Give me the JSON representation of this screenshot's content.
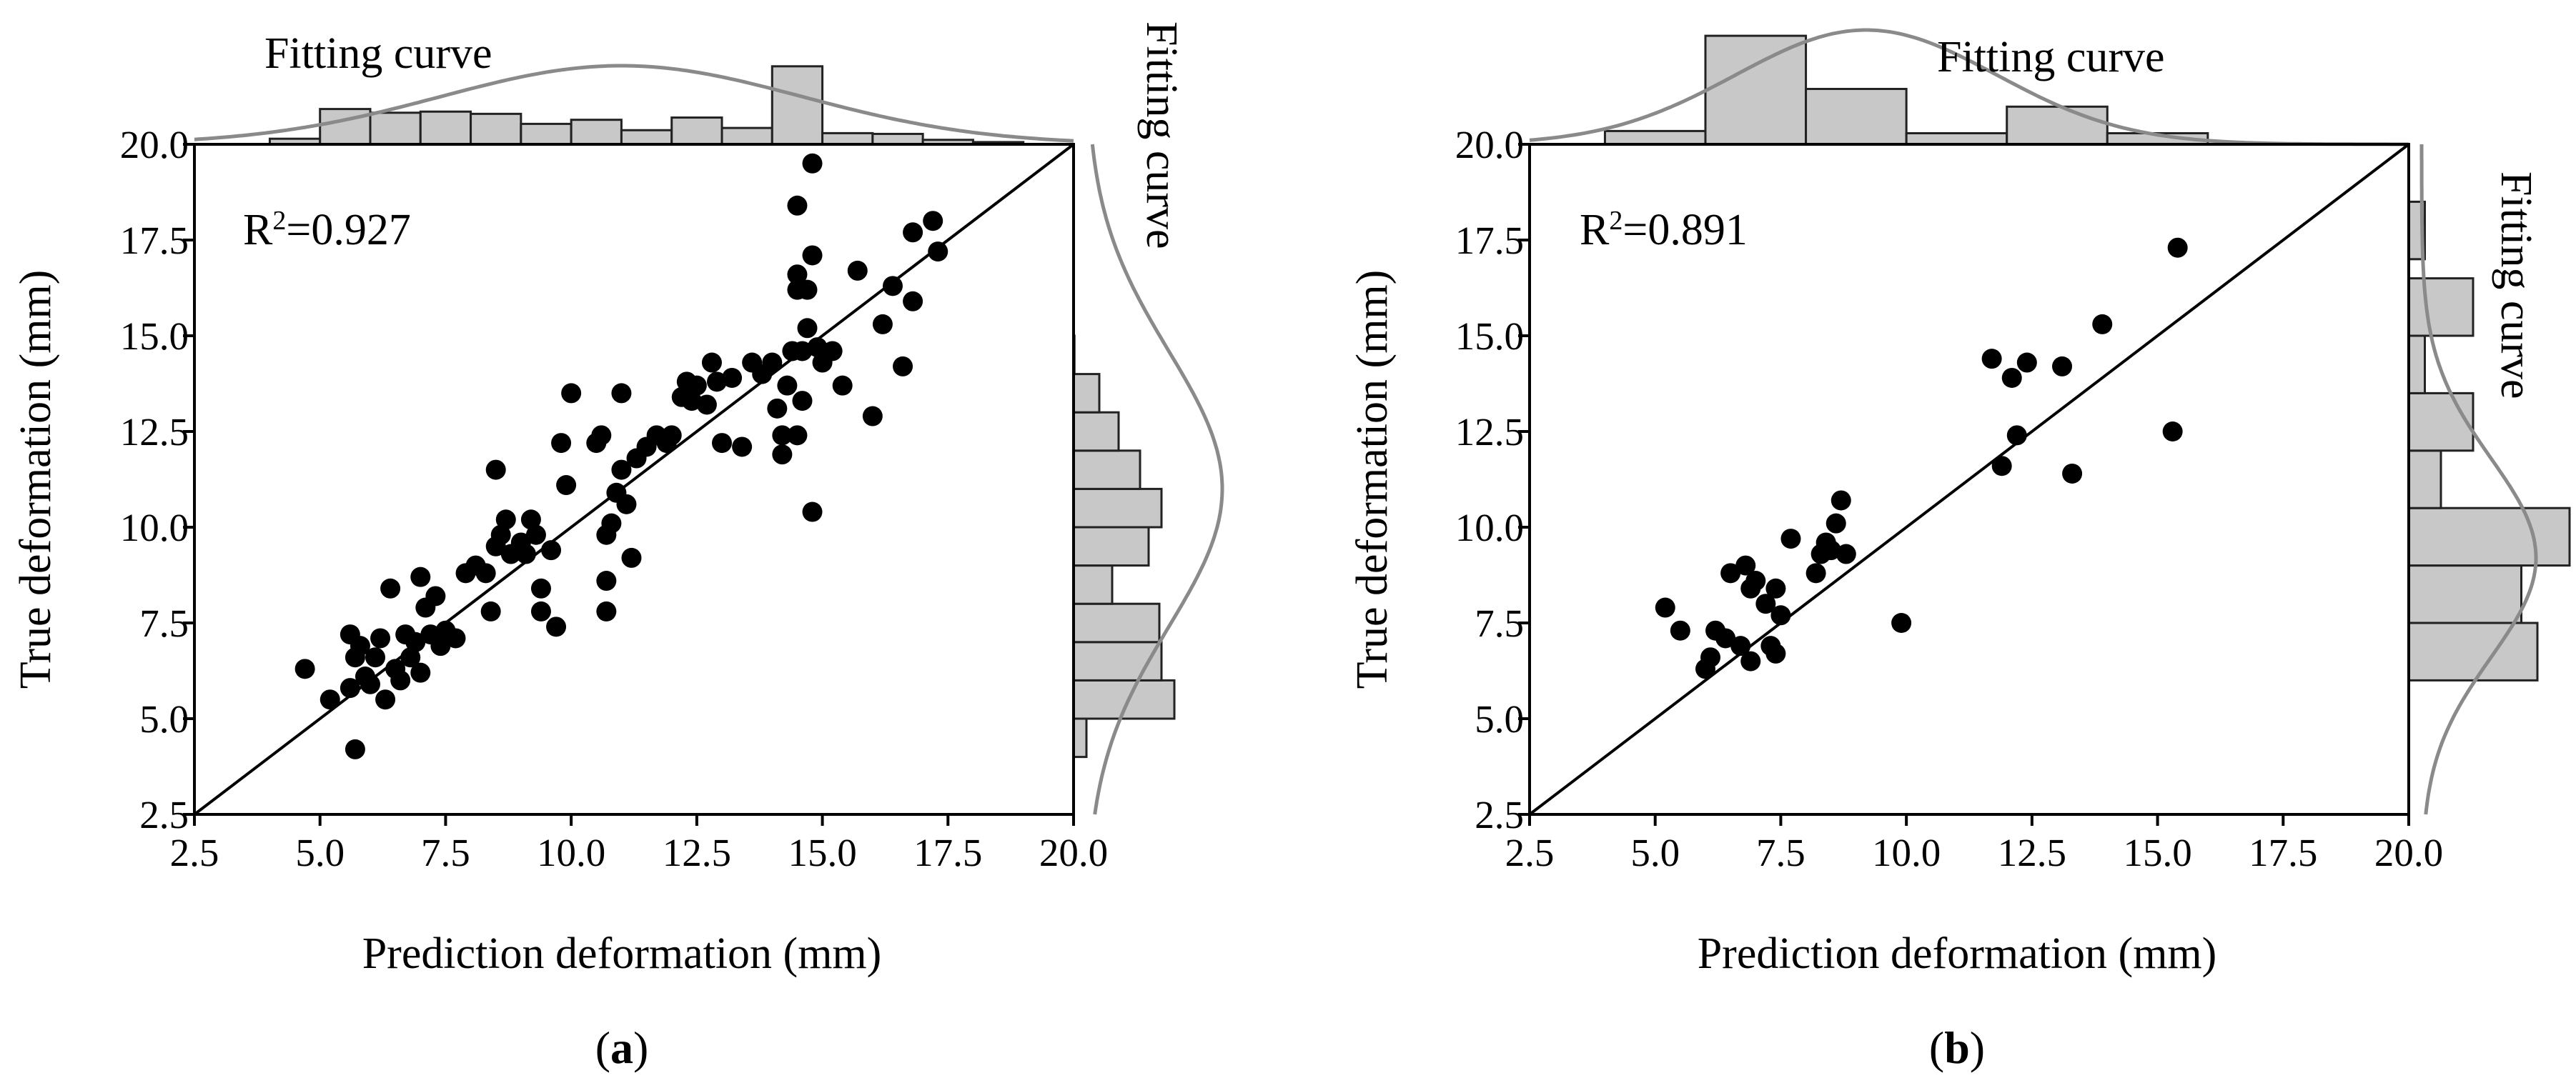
{
  "chart_data": [
    {
      "type": "scatter",
      "panel_label": "a",
      "xlabel": "Prediction deformation (mm)",
      "ylabel": "True deformation (mm)",
      "xlim": [
        2.5,
        20.0
      ],
      "ylim": [
        2.5,
        20.0
      ],
      "xticks": [
        "2.5",
        "5.0",
        "7.5",
        "10.0",
        "12.5",
        "15.0",
        "17.5",
        "20.0"
      ],
      "yticks": [
        "2.5",
        "5.0",
        "7.5",
        "10.0",
        "12.5",
        "15.0",
        "17.5",
        "20.0"
      ],
      "annotation": {
        "prefix": "R",
        "sup": "2",
        "value": "=0.927"
      },
      "top_fit_label": "Fitting curve",
      "right_fit_label": "Fitting curve",
      "reference_line": [
        [
          2.5,
          2.5
        ],
        [
          20.0,
          20.0
        ]
      ],
      "points": [
        [
          4.7,
          6.3
        ],
        [
          5.2,
          5.5
        ],
        [
          5.6,
          7.2
        ],
        [
          5.7,
          6.6
        ],
        [
          5.6,
          5.8
        ],
        [
          5.8,
          6.9
        ],
        [
          5.9,
          6.1
        ],
        [
          6.0,
          5.9
        ],
        [
          5.7,
          4.2
        ],
        [
          6.1,
          6.6
        ],
        [
          6.2,
          7.1
        ],
        [
          6.3,
          5.5
        ],
        [
          6.4,
          8.4
        ],
        [
          6.5,
          6.3
        ],
        [
          6.6,
          6.0
        ],
        [
          6.7,
          7.2
        ],
        [
          6.8,
          6.6
        ],
        [
          6.9,
          7.0
        ],
        [
          7.0,
          8.7
        ],
        [
          7.0,
          6.2
        ],
        [
          7.1,
          7.9
        ],
        [
          7.2,
          7.2
        ],
        [
          7.3,
          8.2
        ],
        [
          7.4,
          6.9
        ],
        [
          7.5,
          7.3
        ],
        [
          7.7,
          7.1
        ],
        [
          7.9,
          8.8
        ],
        [
          8.1,
          9.0
        ],
        [
          8.3,
          8.8
        ],
        [
          8.4,
          7.8
        ],
        [
          8.5,
          11.5
        ],
        [
          8.5,
          9.5
        ],
        [
          8.6,
          9.8
        ],
        [
          8.7,
          10.2
        ],
        [
          8.8,
          9.3
        ],
        [
          9.0,
          9.6
        ],
        [
          9.1,
          9.3
        ],
        [
          9.2,
          10.2
        ],
        [
          9.3,
          9.8
        ],
        [
          9.4,
          8.4
        ],
        [
          9.4,
          7.8
        ],
        [
          9.6,
          9.4
        ],
        [
          9.7,
          7.4
        ],
        [
          9.8,
          12.2
        ],
        [
          9.9,
          11.1
        ],
        [
          10.0,
          13.5
        ],
        [
          10.5,
          12.2
        ],
        [
          10.6,
          12.4
        ],
        [
          10.7,
          9.8
        ],
        [
          10.7,
          8.6
        ],
        [
          10.7,
          7.8
        ],
        [
          10.8,
          10.1
        ],
        [
          10.9,
          10.9
        ],
        [
          11.0,
          11.5
        ],
        [
          11.0,
          13.5
        ],
        [
          11.1,
          10.6
        ],
        [
          11.2,
          9.2
        ],
        [
          11.3,
          11.8
        ],
        [
          11.5,
          12.1
        ],
        [
          11.7,
          12.4
        ],
        [
          11.9,
          12.2
        ],
        [
          12.0,
          12.4
        ],
        [
          12.2,
          13.4
        ],
        [
          12.3,
          13.8
        ],
        [
          12.4,
          13.3
        ],
        [
          12.5,
          13.7
        ],
        [
          12.7,
          13.2
        ],
        [
          12.8,
          14.3
        ],
        [
          12.9,
          13.8
        ],
        [
          13.0,
          12.2
        ],
        [
          13.2,
          13.9
        ],
        [
          13.4,
          12.1
        ],
        [
          13.6,
          14.3
        ],
        [
          13.8,
          14.0
        ],
        [
          14.0,
          14.3
        ],
        [
          14.1,
          13.1
        ],
        [
          14.2,
          12.4
        ],
        [
          14.2,
          11.9
        ],
        [
          14.3,
          13.7
        ],
        [
          14.4,
          14.6
        ],
        [
          14.5,
          12.4
        ],
        [
          14.5,
          16.2
        ],
        [
          14.5,
          16.6
        ],
        [
          14.5,
          18.4
        ],
        [
          14.6,
          13.3
        ],
        [
          14.6,
          14.6
        ],
        [
          14.7,
          15.2
        ],
        [
          14.7,
          16.2
        ],
        [
          14.8,
          17.1
        ],
        [
          14.8,
          19.5
        ],
        [
          14.8,
          10.4
        ],
        [
          14.9,
          14.7
        ],
        [
          15.0,
          14.3
        ],
        [
          15.2,
          14.6
        ],
        [
          15.4,
          13.7
        ],
        [
          15.7,
          16.7
        ],
        [
          16.0,
          12.9
        ],
        [
          16.2,
          15.3
        ],
        [
          16.4,
          16.3
        ],
        [
          16.6,
          14.2
        ],
        [
          16.8,
          17.7
        ],
        [
          17.2,
          18.0
        ],
        [
          17.3,
          17.2
        ],
        [
          16.8,
          15.9
        ]
      ],
      "top_hist": {
        "bins": [
          [
            4.0,
            5.0,
            0.15
          ],
          [
            5.0,
            6.0,
            0.95
          ],
          [
            6.0,
            7.0,
            0.85
          ],
          [
            7.0,
            8.0,
            0.88
          ],
          [
            8.0,
            9.0,
            0.82
          ],
          [
            9.0,
            10.0,
            0.55
          ],
          [
            10.0,
            11.0,
            0.66
          ],
          [
            11.0,
            12.0,
            0.38
          ],
          [
            12.0,
            13.0,
            0.72
          ],
          [
            13.0,
            14.0,
            0.44
          ],
          [
            14.0,
            15.0,
            2.1
          ],
          [
            15.0,
            16.0,
            0.3
          ],
          [
            16.0,
            17.0,
            0.28
          ],
          [
            17.0,
            18.0,
            0.12
          ],
          [
            18.0,
            19.0,
            0.06
          ]
        ]
      },
      "right_hist": {
        "bins": [
          [
            4.0,
            5.0,
            0.3
          ],
          [
            5.0,
            6.0,
            2.35
          ],
          [
            6.0,
            7.0,
            2.05
          ],
          [
            7.0,
            8.0,
            2.0
          ],
          [
            8.0,
            9.0,
            0.9
          ],
          [
            9.0,
            10.0,
            1.75
          ],
          [
            10.0,
            11.0,
            2.05
          ],
          [
            11.0,
            12.0,
            1.55
          ],
          [
            12.0,
            13.0,
            1.05
          ],
          [
            13.0,
            14.0,
            0.6
          ],
          [
            14.0,
            15.0,
            0.02
          ]
        ]
      },
      "fit_normal": {
        "mean": 11.0,
        "sd": 3.6
      }
    },
    {
      "type": "scatter",
      "panel_label": "b",
      "xlabel": "Prediction deformation (mm)",
      "ylabel": "True deformation (mm)",
      "xlim": [
        2.5,
        20.0
      ],
      "ylim": [
        2.5,
        20.0
      ],
      "xticks": [
        "2.5",
        "5.0",
        "7.5",
        "10.0",
        "12.5",
        "15.0",
        "17.5",
        "20.0"
      ],
      "yticks": [
        "2.5",
        "5.0",
        "7.5",
        "10.0",
        "12.5",
        "15.0",
        "17.5",
        "20.0"
      ],
      "annotation": {
        "prefix": "R",
        "sup": "2",
        "value": "=0.891"
      },
      "top_fit_label": "Fitting curve",
      "right_fit_label": "Fitting curve",
      "reference_line": [
        [
          2.5,
          2.5
        ],
        [
          20.0,
          20.0
        ]
      ],
      "points": [
        [
          5.2,
          7.9
        ],
        [
          5.5,
          7.3
        ],
        [
          6.0,
          6.3
        ],
        [
          6.1,
          6.6
        ],
        [
          6.2,
          7.3
        ],
        [
          6.4,
          7.1
        ],
        [
          6.5,
          8.8
        ],
        [
          6.7,
          6.9
        ],
        [
          6.8,
          9.0
        ],
        [
          6.9,
          6.5
        ],
        [
          6.9,
          8.4
        ],
        [
          7.0,
          8.6
        ],
        [
          7.2,
          8.0
        ],
        [
          7.3,
          6.9
        ],
        [
          7.4,
          6.7
        ],
        [
          7.5,
          7.7
        ],
        [
          7.4,
          8.4
        ],
        [
          7.7,
          9.7
        ],
        [
          8.2,
          8.8
        ],
        [
          8.3,
          9.3
        ],
        [
          8.4,
          9.6
        ],
        [
          8.5,
          9.4
        ],
        [
          8.6,
          10.1
        ],
        [
          8.7,
          10.7
        ],
        [
          8.8,
          9.3
        ],
        [
          9.9,
          7.5
        ],
        [
          11.7,
          14.4
        ],
        [
          11.9,
          11.6
        ],
        [
          12.1,
          13.9
        ],
        [
          12.2,
          12.4
        ],
        [
          12.4,
          14.3
        ],
        [
          13.1,
          14.2
        ],
        [
          13.3,
          11.4
        ],
        [
          13.9,
          15.3
        ],
        [
          15.3,
          12.5
        ],
        [
          15.4,
          17.3
        ]
      ],
      "top_hist": {
        "bins": [
          [
            4.0,
            6.0,
            0.3
          ],
          [
            6.0,
            8.0,
            2.45
          ],
          [
            8.0,
            10.0,
            1.25
          ],
          [
            10.0,
            12.0,
            0.25
          ],
          [
            12.0,
            14.0,
            0.85
          ],
          [
            14.0,
            16.0,
            0.25
          ]
        ]
      },
      "right_hist": {
        "bins": [
          [
            6.0,
            7.5,
            1.2
          ],
          [
            7.5,
            9.0,
            1.05
          ],
          [
            9.0,
            10.5,
            1.5
          ],
          [
            10.5,
            12.0,
            0.3
          ],
          [
            12.0,
            13.5,
            0.6
          ],
          [
            13.5,
            15.0,
            0.15
          ],
          [
            15.0,
            16.5,
            0.6
          ],
          [
            17.0,
            18.5,
            0.15
          ]
        ]
      },
      "fit_normal": {
        "mean": 9.2,
        "sd": 2.6
      }
    }
  ]
}
